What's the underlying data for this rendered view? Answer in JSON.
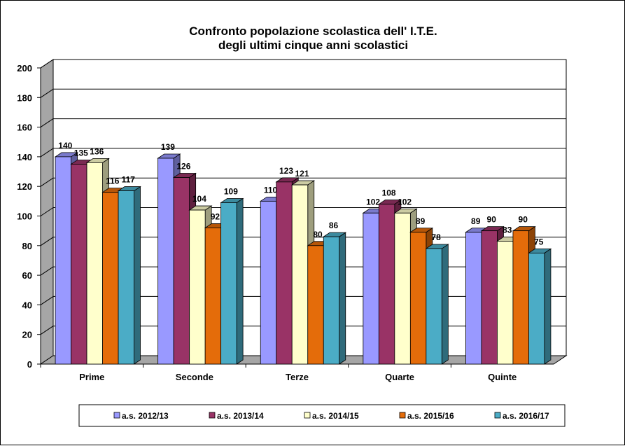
{
  "chart_data": {
    "type": "bar",
    "title": [
      "Confronto popolazione scolastica dell' I.T.E.",
      "degli ultimi cinque anni scolastici"
    ],
    "categories": [
      "Prime",
      "Seconde",
      "Terze",
      "Quarte",
      "Quinte"
    ],
    "series": [
      {
        "name": "a.s. 2012/13",
        "color": "#9999ff",
        "values": [
          140,
          139,
          110,
          102,
          89
        ]
      },
      {
        "name": "a.s. 2013/14",
        "color": "#993366",
        "values": [
          135,
          126,
          123,
          108,
          90
        ]
      },
      {
        "name": "a.s. 2014/15",
        "color": "#ffffcc",
        "values": [
          136,
          104,
          121,
          102,
          83
        ]
      },
      {
        "name": "a.s. 2015/16",
        "color": "#e46c0a",
        "values": [
          116,
          92,
          80,
          89,
          90
        ]
      },
      {
        "name": "a.s. 2016/17",
        "color": "#4bacc6",
        "values": [
          117,
          109,
          86,
          78,
          75
        ]
      }
    ],
    "yticks": [
      "0",
      "20",
      "40",
      "60",
      "80",
      "100",
      "120",
      "140",
      "160",
      "180",
      "200"
    ],
    "ylim": [
      0,
      200
    ],
    "grid": true,
    "style": "3d-clustered-column",
    "legend_position": "bottom"
  }
}
